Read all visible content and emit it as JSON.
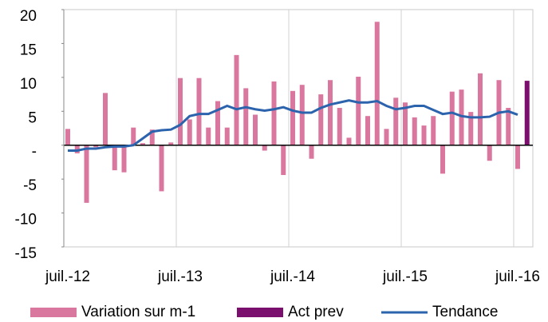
{
  "chart_data": {
    "type": "bar",
    "categories": [
      "juil.-12",
      null,
      null,
      null,
      null,
      null,
      null,
      null,
      null,
      null,
      null,
      null,
      "juil.-13",
      null,
      null,
      null,
      null,
      null,
      null,
      null,
      null,
      null,
      null,
      null,
      "juil.-14",
      null,
      null,
      null,
      null,
      null,
      null,
      null,
      null,
      null,
      null,
      null,
      "juil.-15",
      null,
      null,
      null,
      null,
      null,
      null,
      null,
      null,
      null,
      null,
      null,
      "juil.-16",
      null
    ],
    "series": [
      {
        "name": "Variation sur m-1",
        "color": "#d9779f",
        "kind": "bar",
        "values": [
          2.4,
          -1.2,
          -8.5,
          -0.3,
          7.7,
          -3.7,
          -4.0,
          2.6,
          0.3,
          2.3,
          -6.8,
          0.4,
          9.9,
          3.8,
          9.9,
          2.6,
          6.5,
          2.6,
          13.3,
          8.4,
          4.5,
          -0.8,
          9.4,
          -4.4,
          8.0,
          8.9,
          -2.0,
          7.5,
          9.6,
          5.5,
          1.1,
          10.1,
          4.3,
          18.2,
          2.4,
          7.0,
          6.3,
          4.1,
          2.9,
          4.3,
          -4.2,
          7.9,
          8.2,
          4.9,
          10.6,
          -2.3,
          9.6,
          5.5,
          -3.5,
          null
        ]
      },
      {
        "name": "Act prev",
        "color": "#7b0f6e",
        "kind": "bar",
        "values": [
          null,
          null,
          null,
          null,
          null,
          null,
          null,
          null,
          null,
          null,
          null,
          null,
          null,
          null,
          null,
          null,
          null,
          null,
          null,
          null,
          null,
          null,
          null,
          null,
          null,
          null,
          null,
          null,
          null,
          null,
          null,
          null,
          null,
          null,
          null,
          null,
          null,
          null,
          null,
          null,
          null,
          null,
          null,
          null,
          null,
          null,
          null,
          null,
          null,
          9.5
        ]
      },
      {
        "name": "Tendance",
        "color": "#2c63ad",
        "kind": "line",
        "values": [
          -0.8,
          -0.8,
          -0.5,
          -0.5,
          -0.3,
          -0.2,
          -0.2,
          0.0,
          1.0,
          2.0,
          2.2,
          2.3,
          3.0,
          4.3,
          4.6,
          4.6,
          5.2,
          5.8,
          5.3,
          5.6,
          5.3,
          5.1,
          5.3,
          5.6,
          5.1,
          4.8,
          4.8,
          5.5,
          6.0,
          6.3,
          6.6,
          6.3,
          6.3,
          6.5,
          5.8,
          5.3,
          5.5,
          5.8,
          5.8,
          5.2,
          4.6,
          4.8,
          4.3,
          4.1,
          4.1,
          4.2,
          4.8,
          5.0,
          4.5,
          null
        ]
      }
    ],
    "ylim": [
      -15,
      20
    ],
    "yticks": [
      -15,
      -10,
      -5,
      {
        "value": 0,
        "label": "-"
      },
      5,
      10,
      15,
      20
    ],
    "grid": true,
    "legend": "bottom"
  }
}
